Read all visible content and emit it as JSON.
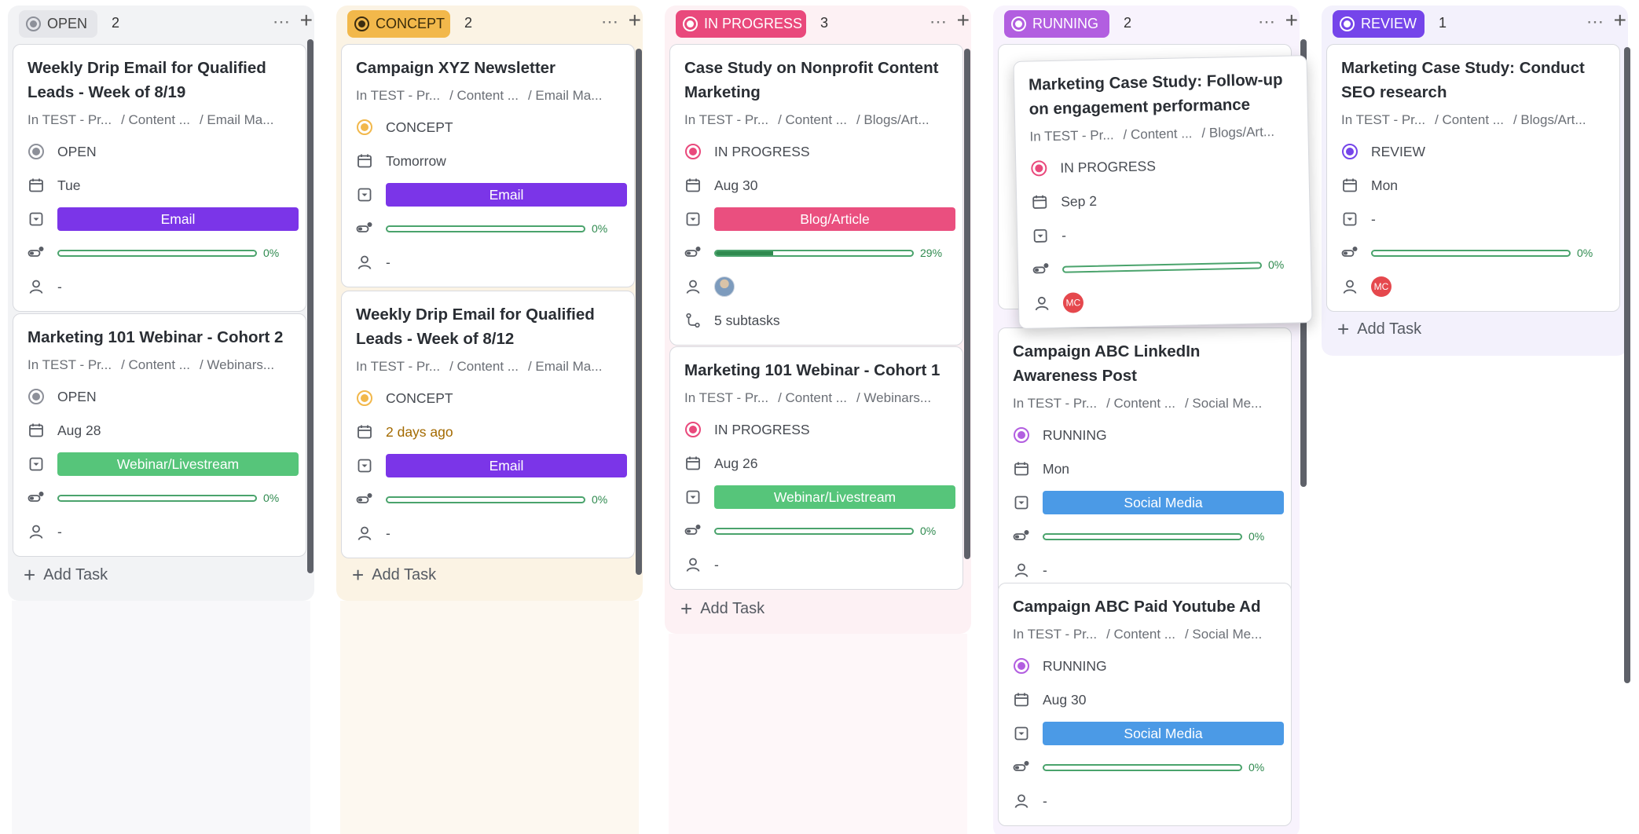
{
  "columns": [
    {
      "status": "OPEN",
      "count": "2",
      "colors": {
        "bg": "#f2f3f5",
        "pill": "#e5e6ea",
        "text": "#444444",
        "dot": "#8d9099"
      },
      "add_task": "Add Task",
      "cards": [
        {
          "title": "Weekly Drip Email for Qualified Leads - Week of 8/19",
          "crumb": [
            "In TEST - Pr...",
            "/ Content ...",
            "/ Email Ma..."
          ],
          "status": "OPEN",
          "date": "Tue",
          "tag": "Email",
          "tag_color": "#7b35e8",
          "progress": 0,
          "progress_label": "0%",
          "assignee": "-"
        },
        {
          "title": "Marketing 101 Webinar - Cohort 2",
          "crumb": [
            "In TEST - Pr...",
            "/ Content ...",
            "/ Webinars..."
          ],
          "status": "OPEN",
          "date": "Aug 28",
          "tag": "Webinar/Livestream",
          "tag_color": "#56c57a",
          "progress": 0,
          "progress_label": "0%",
          "assignee": "-"
        }
      ]
    },
    {
      "status": "CONCEPT",
      "count": "2",
      "colors": {
        "bg": "#fbf3e4",
        "pill": "#f2b84b",
        "text": "#3a2c0b",
        "dot": "#3b2c10"
      },
      "add_task": "Add Task",
      "cards": [
        {
          "title": "Campaign XYZ Newsletter",
          "crumb": [
            "In TEST - Pr...",
            "/ Content ...",
            "/ Email Ma..."
          ],
          "status": "CONCEPT",
          "date": "Tomorrow",
          "tag": "Email",
          "tag_color": "#7b35e8",
          "progress": 0,
          "progress_label": "0%",
          "assignee": "-"
        },
        {
          "title": "Weekly Drip Email for Qualified Leads - Week of 8/12",
          "crumb": [
            "In TEST - Pr...",
            "/ Content ...",
            "/ Email Ma..."
          ],
          "status": "CONCEPT",
          "date": "2 days ago",
          "tag": "Email",
          "tag_color": "#7b35e8",
          "progress": 0,
          "progress_label": "0%",
          "assignee": "-"
        }
      ]
    },
    {
      "status": "IN PROGRESS",
      "count": "3",
      "colors": {
        "bg": "#fdf1f4",
        "pill": "#e9497c",
        "text": "#ffffff",
        "dot": "#ffffff"
      },
      "add_task": "Add Task",
      "cards": [
        {
          "title": "Case Study on Nonprofit Content Marketing",
          "crumb": [
            "In TEST - Pr...",
            "/ Content ...",
            "/ Blogs/Art..."
          ],
          "status": "IN PROGRESS",
          "date": "Aug 30",
          "tag": "Blog/Article",
          "tag_color": "#ea4f7f",
          "progress": 0.29,
          "progress_label": "29%",
          "assignee": "avatar",
          "subtasks": "5 subtasks"
        },
        {
          "title": "Marketing 101 Webinar - Cohort 1",
          "crumb": [
            "In TEST - Pr...",
            "/ Content ...",
            "/ Webinars..."
          ],
          "status": "IN PROGRESS",
          "date": "Aug 26",
          "tag": "Webinar/Livestream",
          "tag_color": "#56c57a",
          "progress": 0,
          "progress_label": "0%",
          "assignee": "-"
        }
      ]
    },
    {
      "status": "RUNNING",
      "count": "2",
      "colors": {
        "bg": "#f8f3fd",
        "pill": "#b25ee0",
        "text": "#ffffff",
        "dot": "#ffffff"
      },
      "add_task": "",
      "cards": [
        {
          "title": "Campaign ABC LinkedIn Awareness Post",
          "crumb": [
            "In TEST - Pr...",
            "/ Content ...",
            "/ Social Me..."
          ],
          "status": "RUNNING",
          "date": "Mon",
          "tag": "Social Media",
          "tag_color": "#4b9ae6",
          "progress": 0,
          "progress_label": "0%",
          "assignee": "-"
        },
        {
          "title": "Campaign ABC Paid Youtube Ad",
          "crumb": [
            "In TEST - Pr...",
            "/ Content ...",
            "/ Social Me..."
          ],
          "status": "RUNNING",
          "date": "Aug 30",
          "tag": "Social Media",
          "tag_color": "#4b9ae6",
          "progress": 0,
          "progress_label": "0%",
          "assignee": "-"
        }
      ]
    },
    {
      "status": "REVIEW",
      "count": "1",
      "colors": {
        "bg": "#f3f1fc",
        "pill": "#7545ea",
        "text": "#ffffff",
        "dot": "#ffffff"
      },
      "add_task": "Add Task",
      "cards": [
        {
          "title": "Marketing Case Study: Conduct SEO research",
          "crumb": [
            "In TEST - Pr...",
            "/ Content ...",
            "/ Blogs/Art..."
          ],
          "status": "REVIEW",
          "date": "Mon",
          "tag": "-",
          "tag_color": "",
          "progress": 0,
          "progress_label": "0%",
          "assignee": "MC"
        }
      ]
    }
  ],
  "dragging_card": {
    "title": "Marketing Case Study: Follow-up on engagement performance",
    "crumb": [
      "In TEST - Pr...",
      "/ Content ...",
      "/ Blogs/Art..."
    ],
    "status": "IN PROGRESS",
    "date": "Sep 2",
    "tag": "-",
    "progress": 0,
    "progress_label": "0%",
    "assignee": "MC"
  },
  "status_dot_colors": {
    "OPEN": "#8d9099",
    "CONCEPT": "#f2b84b",
    "IN PROGRESS": "#e9497c",
    "RUNNING": "#b25ee0",
    "REVIEW": "#7545ea"
  },
  "avatar_color": "#e5484d",
  "icons": {
    "status": "status-circle-icon",
    "date": "calendar-icon",
    "dropdown": "dropdown-field-icon",
    "progress": "progress-icon",
    "assignee": "person-icon",
    "subtasks": "subtask-icon",
    "more": "more-dots-icon",
    "add": "plus-icon"
  }
}
